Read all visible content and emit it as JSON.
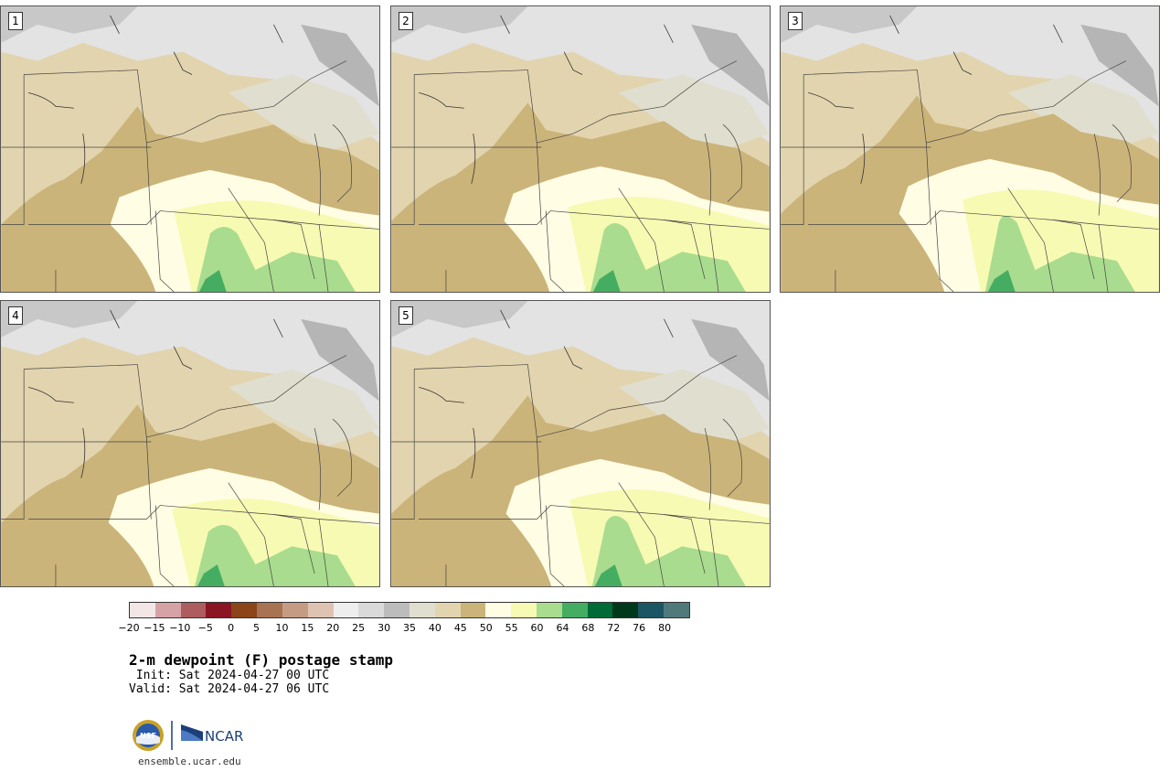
{
  "panels": [
    {
      "label": "1"
    },
    {
      "label": "2"
    },
    {
      "label": "3"
    },
    {
      "label": "4"
    },
    {
      "label": "5"
    }
  ],
  "colorbar": {
    "colors": [
      "#f3e6e6",
      "#d5a3a6",
      "#ad5c60",
      "#8b1523",
      "#8b4518",
      "#a87352",
      "#c59c83",
      "#dfc3b2",
      "#eeeeee",
      "#dadada",
      "#bcbcbc",
      "#e0dfcf",
      "#e2d4ae",
      "#cbb47a",
      "#fffde4",
      "#f7fab3",
      "#a9dc8e",
      "#45ad62",
      "#006b37",
      "#00381b",
      "#1c5664",
      "#50797c"
    ],
    "ticks": [
      "−20",
      "−15",
      "−10",
      "−5",
      "0",
      "5",
      "10",
      "15",
      "20",
      "25",
      "30",
      "35",
      "40",
      "45",
      "50",
      "55",
      "60",
      "64",
      "68",
      "72",
      "76",
      "80"
    ]
  },
  "title": "2-m dewpoint (F) postage stamp",
  "init": " Init: Sat 2024-04-27 00 UTC",
  "valid": "Valid: Sat 2024-04-27 06 UTC",
  "logo": {
    "nsf": "NSF",
    "ncar": "NCAR"
  },
  "url": "ensemble.ucar.edu"
}
